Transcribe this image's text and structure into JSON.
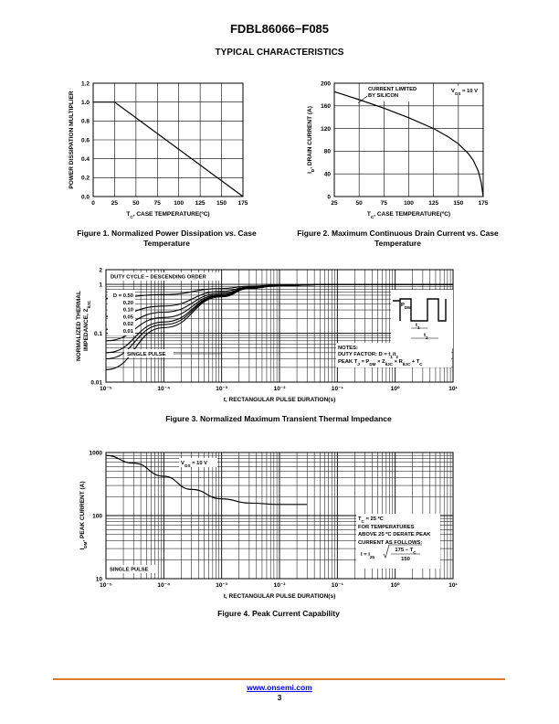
{
  "header": {
    "title": "FDBL86066−F085",
    "section": "TYPICAL CHARACTERISTICS"
  },
  "footer": {
    "url": "www.onsemi.com",
    "page": "3"
  },
  "captions": {
    "fig1": "Figure 1. Normalized Power Dissipation vs. Case Temperature",
    "fig2": "Figure 2. Maximum Continuous Drain Current vs. Case Temperature",
    "fig3": "Figure 3. Normalized Maximum Transient Thermal Impedance",
    "fig4": "Figure 4. Peak Current Capability"
  },
  "chart_data": [
    {
      "id": "fig1",
      "type": "line",
      "xlabel": "TC, CASE TEMPERATURE(ºC)",
      "ylabel": "POWER DISSIPATION MULTIPLIER",
      "xlim": [
        0,
        175
      ],
      "ylim": [
        0,
        1.2
      ],
      "xticks": [
        "0",
        "25",
        "50",
        "75",
        "100",
        "125",
        "150",
        "175"
      ],
      "yticks": [
        "0.0",
        "0.2",
        "0.4",
        "0.6",
        "0.8",
        "1.0",
        "1.2"
      ],
      "grid": true,
      "series": [
        {
          "x": [
            0,
            25,
            175
          ],
          "y": [
            1.0,
            1.0,
            0.0
          ]
        }
      ]
    },
    {
      "id": "fig2",
      "type": "line",
      "xlabel": "TC, CASE TEMPERATURE(ºC)",
      "ylabel": "ID, DRAIN CURRENT (A)",
      "xlim": [
        25,
        175
      ],
      "ylim": [
        0,
        200
      ],
      "xticks": [
        "25",
        "50",
        "75",
        "100",
        "125",
        "150",
        "175"
      ],
      "yticks": [
        "0",
        "40",
        "80",
        "120",
        "160",
        "200"
      ],
      "grid": true,
      "annotations": [
        "CURRENT LIMITED",
        "BY SILICON",
        "VGS = 10 V"
      ],
      "series": [
        {
          "x": [
            25,
            50,
            75,
            100,
            125,
            140,
            150,
            160,
            165,
            170,
            173,
            175
          ],
          "y": [
            185,
            171,
            156,
            139,
            120,
            105,
            93,
            76,
            64,
            45,
            25,
            0
          ]
        }
      ]
    },
    {
      "id": "fig3",
      "type": "line",
      "xscale": "log",
      "yscale": "log",
      "xlabel": "t, RECTANGULAR PULSE DURATION(s)",
      "ylabel": "NORMALIZED THERMAL IMPEDANCE, ZqJC",
      "xlim": [
        1e-05,
        10
      ],
      "ylim": [
        0.01,
        2
      ],
      "xticks": [
        "10⁻⁵",
        "10⁻⁴",
        "10⁻³",
        "10⁻²",
        "10⁻¹",
        "10⁰",
        "10¹"
      ],
      "yticks": [
        "0.01",
        "0.1",
        "1",
        "2"
      ],
      "grid": true,
      "annotations": [
        "DUTY CYCLE − DESCENDING ORDER",
        "SINGLE PULSE",
        "NOTES:",
        "DUTY FACTOR: D = t1/t2",
        "PEAK TJ = PDM × ZθJC × RθJC + TC",
        "PDM",
        "t1",
        "t2"
      ],
      "legend": [
        "D = 0.50",
        "0.20",
        "0.10",
        "0.05",
        "0.02",
        "0.01"
      ],
      "series": [
        {
          "name": "D = 0.50",
          "x": [
            1e-05,
            0.0001,
            0.001,
            0.003,
            0.01,
            0.1,
            1,
            10
          ],
          "y": [
            0.52,
            0.62,
            0.82,
            0.92,
            0.97,
            1.0,
            1.0,
            1.0
          ]
        },
        {
          "name": "0.20",
          "x": [
            1e-05,
            0.0001,
            0.001,
            0.003,
            0.01,
            0.1,
            1,
            10
          ],
          "y": [
            0.22,
            0.36,
            0.72,
            0.88,
            0.96,
            1.0,
            1.0,
            1.0
          ]
        },
        {
          "name": "0.10",
          "x": [
            1e-05,
            0.0001,
            0.001,
            0.003,
            0.01,
            0.1,
            1,
            10
          ],
          "y": [
            0.12,
            0.27,
            0.66,
            0.86,
            0.96,
            1.0,
            1.0,
            1.0
          ]
        },
        {
          "name": "0.05",
          "x": [
            1e-05,
            0.0001,
            0.001,
            0.003,
            0.01,
            0.1,
            1,
            10
          ],
          "y": [
            0.07,
            0.21,
            0.62,
            0.85,
            0.95,
            1.0,
            1.0,
            1.0
          ]
        },
        {
          "name": "0.02",
          "x": [
            1e-05,
            0.0001,
            0.001,
            0.003,
            0.01,
            0.1,
            1,
            10
          ],
          "y": [
            0.04,
            0.17,
            0.6,
            0.84,
            0.95,
            1.0,
            1.0,
            1.0
          ]
        },
        {
          "name": "0.01",
          "x": [
            1e-05,
            0.0001,
            0.001,
            0.003,
            0.01,
            0.1,
            1,
            10
          ],
          "y": [
            0.03,
            0.15,
            0.58,
            0.83,
            0.95,
            1.0,
            1.0,
            1.0
          ]
        },
        {
          "name": "SINGLE PULSE",
          "x": [
            1e-05,
            0.0001,
            0.001,
            0.003,
            0.01,
            0.1,
            1,
            10
          ],
          "y": [
            0.018,
            0.13,
            0.56,
            0.82,
            0.94,
            1.0,
            1.0,
            1.0
          ]
        }
      ]
    },
    {
      "id": "fig4",
      "type": "line",
      "xscale": "log",
      "yscale": "log",
      "xlabel": "t, RECTANGULAR PULSE DURATION(s)",
      "ylabel": "IDM, PEAK CURRENT (A)",
      "xlim": [
        1e-05,
        10
      ],
      "ylim": [
        10,
        1000
      ],
      "xticks": [
        "10⁻⁵",
        "10⁻⁴",
        "10⁻³",
        "10⁻²",
        "10⁻¹",
        "10⁰",
        "10¹"
      ],
      "yticks": [
        "10",
        "100",
        "1000"
      ],
      "grid": true,
      "annotations": [
        "VGS = 10 V",
        "SINGLE PULSE",
        "TC = 25 ºC",
        "FOR TEMPERATURES",
        "ABOVE 25 ºC DERATE PEAK",
        "CURRENT AS FOLLOWS:",
        "I = I25",
        "175 − TC",
        "150"
      ],
      "series": [
        {
          "x": [
            1e-05,
            3e-05,
            0.0001,
            0.0003,
            0.001,
            0.003,
            0.01,
            0.03
          ],
          "y": [
            900,
            680,
            420,
            260,
            185,
            158,
            150,
            150
          ]
        }
      ]
    }
  ]
}
